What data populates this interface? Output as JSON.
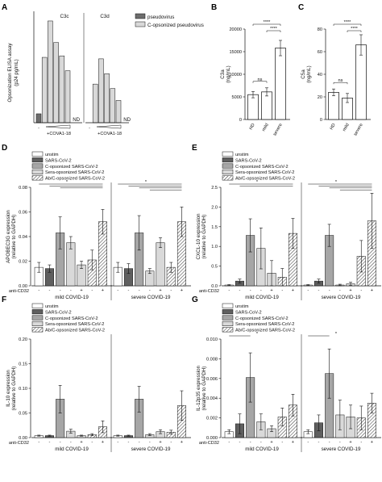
{
  "chart_data": [
    {
      "panel": "A",
      "type": "bar",
      "ylabel": "Opsonization ELISA assay (p24 pg/mL)",
      "groups": [
        "C3c",
        "C3d"
      ],
      "legend": [
        "pseudovirus",
        "C-opsonized pseudovirus"
      ],
      "ylim": [
        0,
        1500
      ],
      "x_labels": [
        "-",
        "+COVA1-18"
      ],
      "nd_label": "ND",
      "colors": {
        "pseudovirus": "#6d6d6d",
        "opsonized": "#d9d9d9"
      },
      "series": [
        {
          "group": "C3c",
          "values": [
            120,
            880,
            1370,
            1080,
            900,
            700
          ]
        },
        {
          "group": "C3d",
          "values": [
            null,
            520,
            860,
            660,
            460,
            300
          ]
        }
      ]
    },
    {
      "panel": "B",
      "type": "bar",
      "ylabel": "C3a (ng/mL)",
      "categories": [
        "HD",
        "mild",
        "severe"
      ],
      "values": [
        5500,
        6100,
        15800
      ],
      "errors": [
        700,
        900,
        1700
      ],
      "ylim": [
        0,
        20000
      ],
      "yticks": [
        "0",
        "5000",
        "10000",
        "15000",
        "20000"
      ],
      "sig": [
        {
          "from": "HD",
          "to": "mild",
          "label": "ns"
        },
        {
          "from": "HD",
          "to": "severe",
          "label": "****"
        },
        {
          "from": "mild",
          "to": "severe",
          "label": "****"
        }
      ]
    },
    {
      "panel": "C",
      "type": "bar",
      "ylabel": "C5a (ng/mL)",
      "categories": [
        "HD",
        "mild",
        "severe"
      ],
      "values": [
        24,
        19,
        66
      ],
      "errors": [
        3,
        4,
        9
      ],
      "ylim": [
        0,
        80
      ],
      "yticks": [
        "0",
        "20",
        "40",
        "60",
        "80"
      ],
      "sig": [
        {
          "from": "HD",
          "to": "mild",
          "label": "ns"
        },
        {
          "from": "HD",
          "to": "severe",
          "label": "****"
        },
        {
          "from": "mild",
          "to": "severe",
          "label": "****"
        }
      ]
    },
    {
      "panel": "D",
      "type": "bar",
      "ylabel": "APOBEC3G expression (relative to GAPDH)",
      "ylim": [
        0,
        0.08
      ],
      "yticks": [
        "0.00",
        "0.02",
        "0.04",
        "0.06",
        "0.08"
      ],
      "groups": [
        "mild COVID-19",
        "severe COVID-19"
      ],
      "anti_cd32": [
        "-",
        "-",
        "-",
        "-",
        "+",
        "-",
        "+"
      ],
      "mild": {
        "values": [
          0.015,
          0.014,
          0.043,
          0.035,
          0.017,
          0.021,
          0.052
        ],
        "errors": [
          0.004,
          0.003,
          0.013,
          0.005,
          0.003,
          0.008,
          0.01
        ]
      },
      "severe": {
        "values": [
          0.015,
          0.014,
          0.043,
          0.012,
          0.035,
          0.015,
          0.052
        ],
        "errors": [
          0.004,
          0.004,
          0.014,
          0.002,
          0.004,
          0.004,
          0.012
        ]
      },
      "sig_label": "*"
    },
    {
      "panel": "E",
      "type": "bar",
      "ylabel": "CXCL-10 expression (relative to GAPDH)",
      "ylim": [
        0,
        2.5
      ],
      "yticks": [
        "0.0",
        "0.5",
        "1.0",
        "1.5",
        "2.0",
        "2.5"
      ],
      "groups": [
        "mild COVID-19",
        "severe COVID-19"
      ],
      "anti_cd32": [
        "-",
        "-",
        "-",
        "-",
        "+",
        "-",
        "+"
      ],
      "mild": {
        "values": [
          0.02,
          0.12,
          1.28,
          0.95,
          0.32,
          0.22,
          1.33
        ],
        "errors": [
          0.01,
          0.05,
          0.42,
          0.52,
          0.32,
          0.22,
          0.38
        ]
      },
      "severe": {
        "values": [
          0.02,
          0.12,
          1.28,
          0.02,
          0.05,
          0.75,
          1.65
        ],
        "errors": [
          0.01,
          0.05,
          0.28,
          0.02,
          0.04,
          0.4,
          0.7
        ]
      },
      "sig_label": "*"
    },
    {
      "panel": "F",
      "type": "bar",
      "ylabel": "IL-10 expression (relative to GAPDH)",
      "ylim": [
        0,
        0.2
      ],
      "yticks": [
        "0.00",
        "0.05",
        "0.10",
        "0.15",
        "0.20"
      ],
      "groups": [
        "mild COVID-19",
        "severe COVID-19"
      ],
      "anti_cd32": [
        "-",
        "-",
        "-",
        "-",
        "+",
        "-",
        "+"
      ],
      "mild": {
        "values": [
          0.004,
          0.004,
          0.078,
          0.013,
          0.004,
          0.006,
          0.022
        ],
        "errors": [
          0.001,
          0.001,
          0.028,
          0.004,
          0.001,
          0.002,
          0.012
        ]
      },
      "severe": {
        "values": [
          0.004,
          0.004,
          0.078,
          0.006,
          0.012,
          0.011,
          0.065
        ],
        "errors": [
          0.001,
          0.001,
          0.026,
          0.002,
          0.004,
          0.004,
          0.03
        ]
      }
    },
    {
      "panel": "G",
      "type": "bar",
      "ylabel": "IL-12p35 expression (relative to GAPDH)",
      "ylim": [
        0,
        0.01
      ],
      "yticks": [
        "0.000",
        "0.002",
        "0.004",
        "0.006",
        "0.008",
        "0.010"
      ],
      "groups": [
        "mild COVID-19",
        "severe COVID-19"
      ],
      "anti_cd32": [
        "-",
        "-",
        "-",
        "-",
        "+",
        "-",
        "+"
      ],
      "mild": {
        "values": [
          0.0006,
          0.0014,
          0.0061,
          0.0016,
          0.0009,
          0.0021,
          0.0033
        ],
        "errors": [
          0.0002,
          0.001,
          0.0025,
          0.0008,
          0.0003,
          0.0009,
          0.0011
        ]
      },
      "severe": {
        "values": [
          0.0006,
          0.0015,
          0.0065,
          0.0023,
          0.0021,
          0.002,
          0.0035
        ],
        "errors": [
          0.0002,
          0.0008,
          0.0025,
          0.0015,
          0.0012,
          0.0012,
          0.001
        ]
      },
      "sig_label": "*"
    }
  ],
  "panels": {
    "A": "A",
    "B": "B",
    "C": "C",
    "D": "D",
    "E": "E",
    "F": "F",
    "G": "G"
  },
  "legend_7": [
    "unstim",
    "SARS-CoV-2",
    "C-opsonized SARS-CoV-2",
    "Sera-opsonized SARS-CoV-2",
    "Ab/C-opsonized SARS-CoV-2"
  ],
  "anti_cd32_label": "anti-CD32",
  "fill_colors": {
    "unstim": "#ffffff",
    "sars": "#5f5f5f",
    "copsonized": "#a6a6a6",
    "sera": "#d9d9d9",
    "abc": "#ffffff"
  }
}
